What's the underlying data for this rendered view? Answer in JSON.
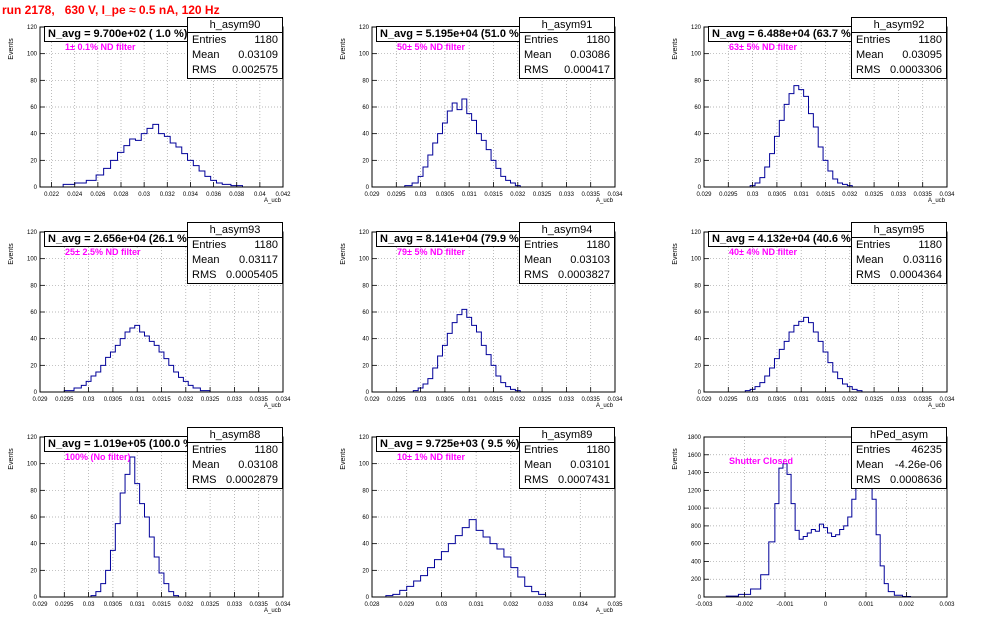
{
  "header": {
    "title": "run 2178,   630 V, I_pe ≈ 0.5 nA, 120 Hz",
    "color": "#ff0000"
  },
  "colors": {
    "hist": "#000099",
    "filter_label": "#ff00ff",
    "grid": "#a0a0a0"
  },
  "chart_data": [
    {
      "type": "bar",
      "histogram": "h_asym90",
      "navg": "N_avg = 9.700e+02 ( 1.0 %)",
      "filter": "1± 0.1% ND filter",
      "entries": "1180",
      "mean": "0.03109",
      "rms": "0.002575",
      "ylabel": "Events",
      "xlabel": "A_ucb",
      "xlim": [
        0.021,
        0.042
      ],
      "ylim": [
        0,
        120
      ],
      "yticks": [
        0,
        20,
        40,
        60,
        80,
        100,
        120
      ],
      "xticks": [
        "0.022",
        "0.024",
        "0.026",
        "0.028",
        "0.03",
        "0.032",
        "0.034",
        "0.036",
        "0.038",
        "0.04",
        "0.042"
      ],
      "xtick_values": [
        0.022,
        0.024,
        0.026,
        0.028,
        0.03,
        0.032,
        0.034,
        0.036,
        0.038,
        0.04,
        0.042
      ],
      "x": [
        0.0235,
        0.0245,
        0.0255,
        0.0262,
        0.0268,
        0.0274,
        0.028,
        0.0285,
        0.029,
        0.0295,
        0.03,
        0.0305,
        0.031,
        0.0315,
        0.032,
        0.0325,
        0.033,
        0.0335,
        0.034,
        0.0345,
        0.035,
        0.0355,
        0.036,
        0.0365,
        0.037,
        0.038
      ],
      "values": [
        2,
        3,
        5,
        9,
        14,
        20,
        26,
        31,
        36,
        35,
        40,
        44,
        47,
        40,
        38,
        33,
        30,
        25,
        20,
        16,
        12,
        8,
        5,
        3,
        2,
        1
      ]
    },
    {
      "type": "bar",
      "histogram": "h_asym91",
      "navg": "N_avg = 5.195e+04 (51.0 %)",
      "filter": "50± 5% ND filter",
      "entries": "1180",
      "mean": "0.03086",
      "rms": "0.000417",
      "ylabel": "Events",
      "xlabel": "A_ucb",
      "xlim": [
        0.029,
        0.034
      ],
      "ylim": [
        0,
        120
      ],
      "yticks": [
        0,
        20,
        40,
        60,
        80,
        100,
        120
      ],
      "xticks": [
        "0.029",
        "0.0295",
        "0.03",
        "0.0305",
        "0.031",
        "0.0315",
        "0.032",
        "0.0325",
        "0.033",
        "0.0335",
        "0.034"
      ],
      "xtick_values": [
        0.029,
        0.0295,
        0.03,
        0.0305,
        0.031,
        0.0315,
        0.032,
        0.0325,
        0.033,
        0.0335,
        0.034
      ],
      "x": [
        0.02975,
        0.0299,
        0.03,
        0.0301,
        0.0302,
        0.0303,
        0.0304,
        0.0305,
        0.0306,
        0.0307,
        0.0308,
        0.0309,
        0.031,
        0.0311,
        0.0312,
        0.0313,
        0.0314,
        0.0315,
        0.0316,
        0.0317,
        0.0318,
        0.0319,
        0.032
      ],
      "values": [
        1,
        3,
        8,
        15,
        24,
        33,
        40,
        48,
        57,
        63,
        58,
        66,
        55,
        50,
        40,
        35,
        28,
        20,
        14,
        8,
        5,
        3,
        1
      ]
    },
    {
      "type": "bar",
      "histogram": "h_asym92",
      "navg": "N_avg = 6.488e+04 (63.7 %)",
      "filter": "63± 5% ND filter",
      "entries": "1180",
      "mean": "0.03095",
      "rms": "0.0003306",
      "ylabel": "Events",
      "xlabel": "A_ucb",
      "xlim": [
        0.029,
        0.034
      ],
      "ylim": [
        0,
        120
      ],
      "yticks": [
        0,
        20,
        40,
        60,
        80,
        100,
        120
      ],
      "xticks": [
        "0.029",
        "0.0295",
        "0.03",
        "0.0305",
        "0.031",
        "0.0315",
        "0.032",
        "0.0325",
        "0.033",
        "0.0335",
        "0.034"
      ],
      "xtick_values": [
        0.029,
        0.0295,
        0.03,
        0.0305,
        0.031,
        0.0315,
        0.032,
        0.0325,
        0.033,
        0.0335,
        0.034
      ],
      "x": [
        0.03,
        0.0301,
        0.0302,
        0.0303,
        0.0304,
        0.0305,
        0.0306,
        0.0307,
        0.0308,
        0.0309,
        0.031,
        0.0311,
        0.0312,
        0.0313,
        0.0314,
        0.0315,
        0.0316,
        0.0317,
        0.0318,
        0.0319,
        0.032
      ],
      "values": [
        1,
        3,
        7,
        15,
        25,
        38,
        50,
        62,
        70,
        76,
        73,
        68,
        55,
        45,
        30,
        20,
        12,
        6,
        3,
        2,
        1
      ]
    },
    {
      "type": "bar",
      "histogram": "h_asym93",
      "navg": "N_avg = 2.656e+04 (26.1 %)",
      "filter": "25± 2.5% ND filter",
      "entries": "1180",
      "mean": "0.03117",
      "rms": "0.0005405",
      "ylabel": "Events",
      "xlabel": "A_ucb",
      "xlim": [
        0.029,
        0.034
      ],
      "ylim": [
        0,
        120
      ],
      "yticks": [
        0,
        20,
        40,
        60,
        80,
        100,
        120
      ],
      "xticks": [
        "0.029",
        "0.0295",
        "0.03",
        "0.0305",
        "0.031",
        "0.0315",
        "0.032",
        "0.0325",
        "0.033",
        "0.0335",
        "0.034"
      ],
      "xtick_values": [
        0.029,
        0.0295,
        0.03,
        0.0305,
        0.031,
        0.0315,
        0.032,
        0.0325,
        0.033,
        0.0335,
        0.034
      ],
      "x": [
        0.0296,
        0.0298,
        0.0299,
        0.03,
        0.0301,
        0.0302,
        0.0303,
        0.0304,
        0.0305,
        0.0306,
        0.0307,
        0.0308,
        0.0309,
        0.031,
        0.0311,
        0.0312,
        0.0313,
        0.0314,
        0.0315,
        0.0316,
        0.0317,
        0.0318,
        0.0319,
        0.032,
        0.0321,
        0.0322,
        0.0324
      ],
      "values": [
        1,
        3,
        5,
        8,
        12,
        15,
        20,
        26,
        30,
        35,
        40,
        45,
        48,
        50,
        45,
        42,
        38,
        35,
        30,
        25,
        20,
        15,
        11,
        8,
        5,
        3,
        1
      ]
    },
    {
      "type": "bar",
      "histogram": "h_asym94",
      "navg": "N_avg = 8.141e+04 (79.9 %)",
      "filter": "79± 5% ND filter",
      "entries": "1180",
      "mean": "0.03103",
      "rms": "0.0003827",
      "ylabel": "Events",
      "xlabel": "A_ucb",
      "xlim": [
        0.029,
        0.034
      ],
      "ylim": [
        0,
        120
      ],
      "yticks": [
        0,
        20,
        40,
        60,
        80,
        100,
        120
      ],
      "xticks": [
        "0.029",
        "0.0295",
        "0.03",
        "0.0305",
        "0.031",
        "0.0315",
        "0.032",
        "0.0325",
        "0.033",
        "0.0335",
        "0.034"
      ],
      "xtick_values": [
        0.029,
        0.0295,
        0.03,
        0.0305,
        0.031,
        0.0315,
        0.032,
        0.0325,
        0.033,
        0.0335,
        0.034
      ],
      "x": [
        0.0299,
        0.03,
        0.0301,
        0.0302,
        0.0303,
        0.0304,
        0.0305,
        0.0306,
        0.0307,
        0.0308,
        0.0309,
        0.031,
        0.0311,
        0.0312,
        0.0313,
        0.0314,
        0.0315,
        0.0316,
        0.0317,
        0.0318,
        0.0319,
        0.032
      ],
      "values": [
        1,
        3,
        6,
        10,
        18,
        27,
        35,
        44,
        52,
        58,
        62,
        56,
        50,
        45,
        35,
        28,
        20,
        12,
        7,
        4,
        2,
        1
      ]
    },
    {
      "type": "bar",
      "histogram": "h_asym95",
      "navg": "N_avg = 4.132e+04 (40.6 %)",
      "filter": "40± 4% ND filter",
      "entries": "1180",
      "mean": "0.03116",
      "rms": "0.0004364",
      "ylabel": "Events",
      "xlabel": "A_ucb",
      "xlim": [
        0.029,
        0.034
      ],
      "ylim": [
        0,
        120
      ],
      "yticks": [
        0,
        20,
        40,
        60,
        80,
        100,
        120
      ],
      "xticks": [
        "0.029",
        "0.0295",
        "0.03",
        "0.0305",
        "0.031",
        "0.0315",
        "0.032",
        "0.0325",
        "0.033",
        "0.0335",
        "0.034"
      ],
      "xtick_values": [
        0.029,
        0.0295,
        0.03,
        0.0305,
        0.031,
        0.0315,
        0.032,
        0.0325,
        0.033,
        0.0335,
        0.034
      ],
      "x": [
        0.0299,
        0.03,
        0.0301,
        0.0302,
        0.0303,
        0.0304,
        0.0305,
        0.0306,
        0.0307,
        0.0308,
        0.0309,
        0.031,
        0.0311,
        0.0312,
        0.0313,
        0.0314,
        0.0315,
        0.0316,
        0.0317,
        0.0318,
        0.0319,
        0.032,
        0.0321,
        0.0322
      ],
      "values": [
        1,
        2,
        4,
        7,
        12,
        18,
        25,
        32,
        38,
        45,
        50,
        53,
        56,
        52,
        45,
        38,
        30,
        22,
        15,
        10,
        6,
        4,
        2,
        1
      ]
    },
    {
      "type": "bar",
      "histogram": "h_asym88",
      "navg": "N_avg = 1.019e+05 (100.0 %)",
      "filter": "100% (No filter)",
      "entries": "1180",
      "mean": "0.03108",
      "rms": "0.0002879",
      "ylabel": "Events",
      "xlabel": "A_ucb",
      "xlim": [
        0.029,
        0.034
      ],
      "ylim": [
        0,
        120
      ],
      "yticks": [
        0,
        20,
        40,
        60,
        80,
        100,
        120
      ],
      "xticks": [
        "0.029",
        "0.0295",
        "0.03",
        "0.0305",
        "0.031",
        "0.0315",
        "0.032",
        "0.0325",
        "0.033",
        "0.0335",
        "0.034"
      ],
      "xtick_values": [
        0.029,
        0.0295,
        0.03,
        0.0305,
        0.031,
        0.0315,
        0.032,
        0.0325,
        0.033,
        0.0335,
        0.034
      ],
      "x": [
        0.0301,
        0.0302,
        0.0303,
        0.0304,
        0.0305,
        0.0306,
        0.0307,
        0.0308,
        0.0309,
        0.031,
        0.0311,
        0.0312,
        0.0313,
        0.0314,
        0.0315,
        0.0316,
        0.0317,
        0.0318
      ],
      "values": [
        1,
        4,
        10,
        20,
        35,
        55,
        78,
        92,
        105,
        85,
        70,
        60,
        45,
        30,
        18,
        10,
        4,
        1
      ]
    },
    {
      "type": "bar",
      "histogram": "h_asym89",
      "navg": "N_avg = 9.725e+03 ( 9.5 %)",
      "filter": "10± 1% ND filter",
      "entries": "1180",
      "mean": "0.03101",
      "rms": "0.0007431",
      "ylabel": "Events",
      "xlabel": "A_ucb",
      "xlim": [
        0.028,
        0.035
      ],
      "ylim": [
        0,
        120
      ],
      "yticks": [
        0,
        20,
        40,
        60,
        80,
        100,
        120
      ],
      "xticks": [
        "0.028",
        "0.029",
        "0.03",
        "0.031",
        "0.032",
        "0.033",
        "0.034",
        "0.035"
      ],
      "xtick_values": [
        0.028,
        0.029,
        0.03,
        0.031,
        0.032,
        0.033,
        0.034,
        0.035
      ],
      "x": [
        0.0285,
        0.0287,
        0.0289,
        0.0291,
        0.0293,
        0.0295,
        0.0297,
        0.0299,
        0.0301,
        0.0303,
        0.0305,
        0.0307,
        0.0309,
        0.0311,
        0.0313,
        0.0315,
        0.0317,
        0.0319,
        0.0321,
        0.0323,
        0.0325,
        0.0327,
        0.0329
      ],
      "values": [
        1,
        2,
        5,
        8,
        12,
        16,
        22,
        28,
        34,
        40,
        46,
        52,
        58,
        50,
        45,
        40,
        36,
        30,
        22,
        15,
        8,
        4,
        2
      ]
    },
    {
      "type": "bar",
      "histogram": "hPed_asym",
      "navg": "",
      "filter": "Shutter Closed",
      "entries": "46235",
      "mean": "-4.26e-06",
      "rms": "0.0008636",
      "ylabel": "Events",
      "xlabel": "",
      "xlim": [
        -0.003,
        0.003
      ],
      "ylim": [
        0,
        1800
      ],
      "yticks": [
        0,
        200,
        400,
        600,
        800,
        1000,
        1200,
        1400,
        1600,
        1800
      ],
      "xticks": [
        "-0.003",
        "-0.002",
        "-0.001",
        "0",
        "0.001",
        "0.002",
        "0.003"
      ],
      "xtick_values": [
        -0.003,
        -0.002,
        -0.001,
        0,
        0.001,
        0.002,
        0.003
      ],
      "x": [
        -0.0023,
        -0.002,
        -0.0017,
        -0.0015,
        -0.0013,
        -0.0012,
        -0.0011,
        -0.001,
        -0.0009,
        -0.0008,
        -0.0007,
        -0.0006,
        -0.0005,
        -0.0004,
        -0.0003,
        -0.0002,
        -0.0001,
        0.0,
        0.0001,
        0.0002,
        0.0003,
        0.0004,
        0.0005,
        0.0006,
        0.0007,
        0.0008,
        0.0009,
        0.001,
        0.0011,
        0.0012,
        0.0013,
        0.0014,
        0.0015,
        0.0016,
        0.0018,
        0.002
      ],
      "values": [
        10,
        30,
        90,
        250,
        620,
        1050,
        1450,
        1500,
        1380,
        1050,
        750,
        650,
        680,
        720,
        760,
        740,
        820,
        780,
        720,
        680,
        700,
        760,
        800,
        900,
        1100,
        1450,
        1700,
        1780,
        1600,
        1100,
        700,
        350,
        150,
        60,
        20,
        5
      ]
    }
  ]
}
